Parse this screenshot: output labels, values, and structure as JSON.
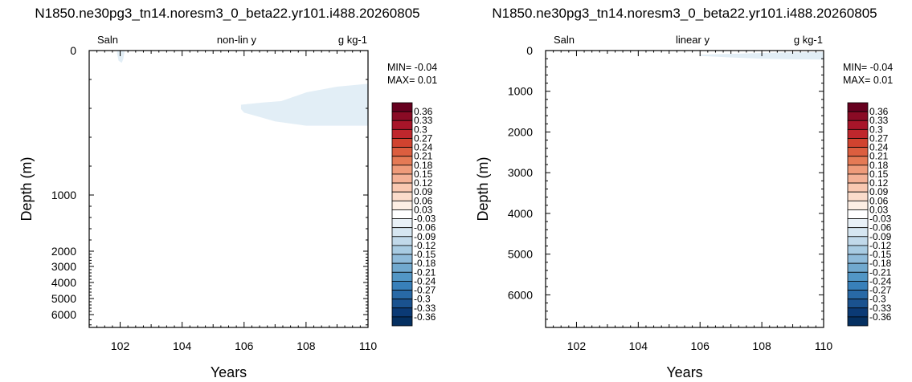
{
  "chart_data": [
    {
      "type": "heatmap",
      "title": "N1850.ne30pg3_tn14.noresm3_0_beta22.yr101.i488.20260805",
      "left_label": "Saln",
      "center_label": "non-lin y",
      "right_label": "g kg-1",
      "xlabel": "Years",
      "ylabel": "Depth (m)",
      "xlim": [
        101,
        110
      ],
      "x_ticks": [
        "102",
        "104",
        "106",
        "108",
        "110"
      ],
      "x_tick_values": [
        102,
        104,
        106,
        108,
        110
      ],
      "ylim": [
        0,
        6500
      ],
      "y_scale": "non-linear",
      "y_ticks": [
        "0",
        "1000",
        "2000",
        "3000",
        "4000",
        "5000",
        "6000"
      ],
      "y_tick_values": [
        0,
        1000,
        2000,
        3000,
        4000,
        5000,
        6000
      ],
      "min_text": "MIN= -0.04",
      "max_text": "MAX=  0.01",
      "colorbar_labels": [
        "0.36",
        "0.33",
        "0.3",
        "0.27",
        "0.24",
        "0.21",
        "0.18",
        "0.15",
        "0.12",
        "0.09",
        "0.06",
        "0.03",
        "-0.03",
        "-0.06",
        "-0.09",
        "-0.12",
        "-0.15",
        "-0.18",
        "-0.21",
        "-0.24",
        "-0.27",
        "-0.3",
        "-0.33",
        "-0.36"
      ],
      "regions": [
        {
          "level": "-0.03 to 0",
          "color": "#e2eef6",
          "points": [
            [
              101.9,
              0
            ],
            [
              102.15,
              0
            ],
            [
              102.1,
              60
            ],
            [
              102.05,
              85
            ],
            [
              101.95,
              70
            ],
            [
              101.9,
              20
            ]
          ]
        },
        {
          "level": "-0.03 to 0",
          "color": "#e2eef6",
          "points": [
            [
              105.9,
              375
            ],
            [
              106.6,
              360
            ],
            [
              107.2,
              350
            ],
            [
              108,
              290
            ],
            [
              109,
              250
            ],
            [
              110,
              230
            ],
            [
              110,
              520
            ],
            [
              108,
              520
            ],
            [
              107,
              490
            ],
            [
              106.5,
              460
            ],
            [
              106,
              430
            ],
            [
              105.9,
              405
            ]
          ]
        }
      ]
    },
    {
      "type": "heatmap",
      "title": "N1850.ne30pg3_tn14.noresm3_0_beta22.yr101.i488.20260805",
      "left_label": "Saln",
      "center_label": "linear y",
      "right_label": "g kg-1",
      "xlabel": "Years",
      "ylabel": "Depth (m)",
      "xlim": [
        101,
        110
      ],
      "x_ticks": [
        "102",
        "104",
        "106",
        "108",
        "110"
      ],
      "x_tick_values": [
        102,
        104,
        106,
        108,
        110
      ],
      "ylim": [
        0,
        6800
      ],
      "y_scale": "linear",
      "y_ticks": [
        "0",
        "1000",
        "2000",
        "3000",
        "4000",
        "5000",
        "6000"
      ],
      "y_tick_values": [
        0,
        1000,
        2000,
        3000,
        4000,
        5000,
        6000
      ],
      "min_text": "MIN= -0.04",
      "max_text": "MAX=  0.01",
      "colorbar_labels": [
        "0.36",
        "0.33",
        "0.3",
        "0.27",
        "0.24",
        "0.21",
        "0.18",
        "0.15",
        "0.12",
        "0.09",
        "0.06",
        "0.03",
        "-0.03",
        "-0.06",
        "-0.09",
        "-0.12",
        "-0.15",
        "-0.18",
        "-0.21",
        "-0.24",
        "-0.27",
        "-0.3",
        "-0.33",
        "-0.36"
      ],
      "regions": [
        {
          "level": "-0.03 to 0",
          "color": "#e2eef6",
          "points": [
            [
              106,
              100
            ],
            [
              107,
              80
            ],
            [
              108,
              60
            ],
            [
              109,
              45
            ],
            [
              110,
              40
            ],
            [
              110,
              220
            ],
            [
              109,
              215
            ],
            [
              108,
              200
            ],
            [
              107,
              170
            ],
            [
              106,
              130
            ]
          ]
        }
      ]
    }
  ],
  "colorbar_colors": [
    "#67001f",
    "#8a0b25",
    "#a81529",
    "#c0272d",
    "#d1432f",
    "#dc5e3f",
    "#e57a55",
    "#ef9b7a",
    "#f4b196",
    "#f9c8b1",
    "#fbdccb",
    "#fdeee4",
    "#ffffff",
    "#e9f1f7",
    "#d6e6f1",
    "#c1d9ea",
    "#a8cbe2",
    "#8fbbda",
    "#71a9cf",
    "#5296c5",
    "#3880ba",
    "#2869a6",
    "#1a528f",
    "#0b3a75",
    "#053061"
  ]
}
